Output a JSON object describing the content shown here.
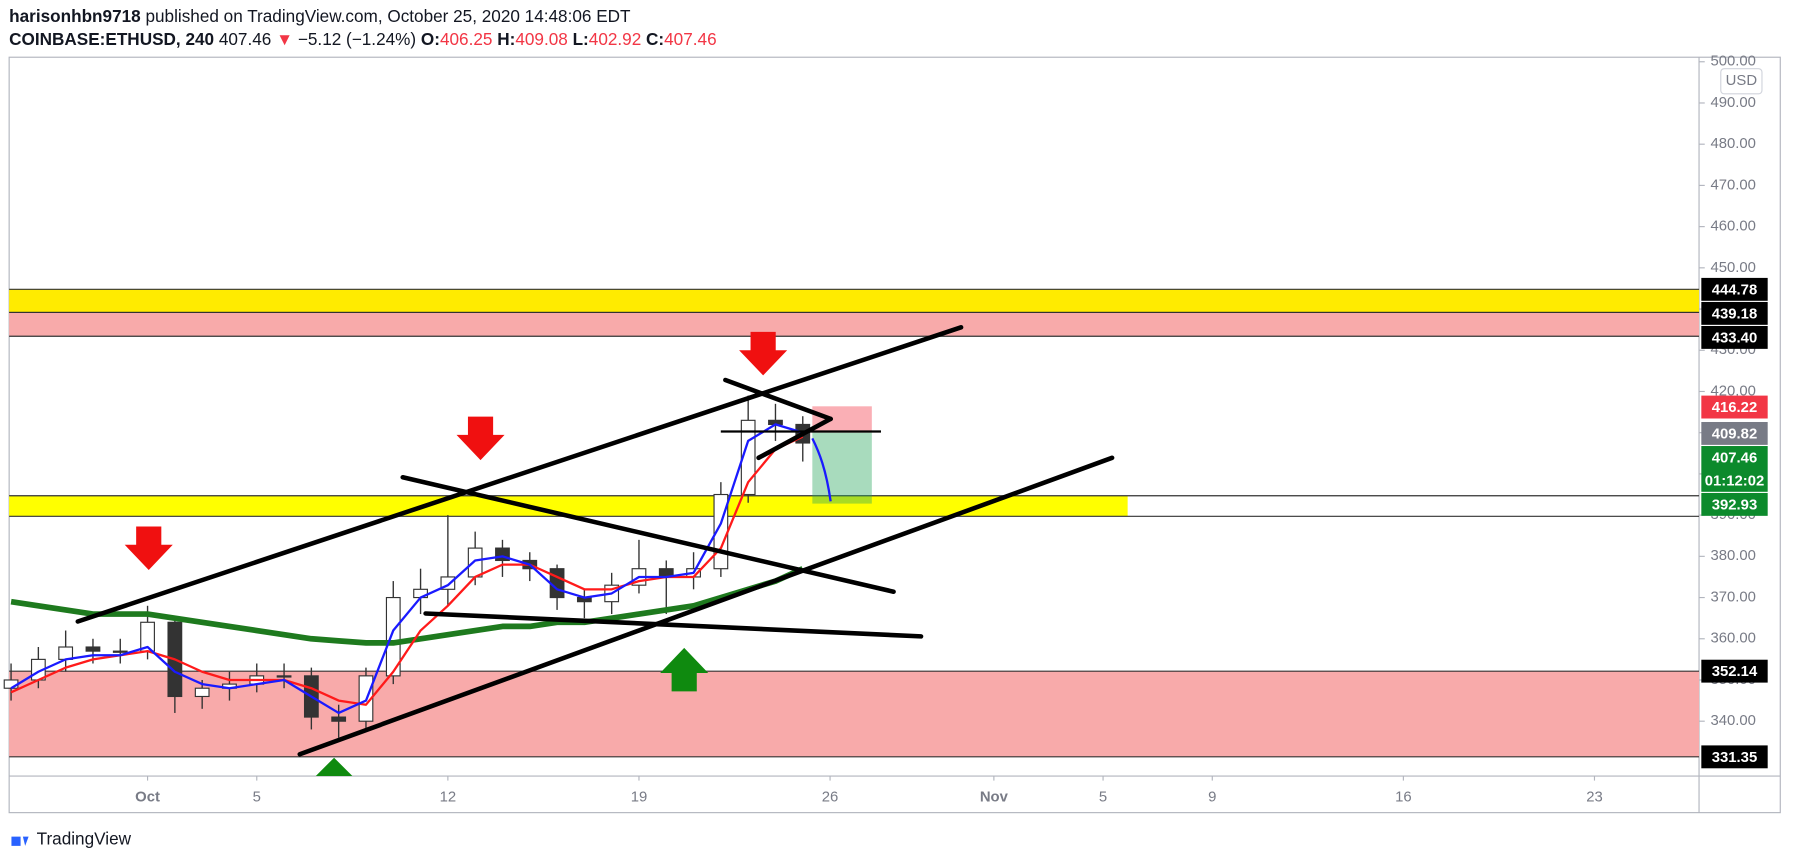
{
  "header": {
    "author": "harisonhbn9718",
    "published": "published on TradingView.com, October 25, 2020 14:48:06 EDT",
    "symbol": "COINBASE:ETHUSD, 240",
    "last": "407.46",
    "arrow": "▼",
    "change": "−5.12 (−1.24%)",
    "ohlc": [
      {
        "label": "O:",
        "value": "406.25"
      },
      {
        "label": "H:",
        "value": "409.08"
      },
      {
        "label": "L:",
        "value": "402.92"
      },
      {
        "label": "C:",
        "value": "407.46"
      }
    ]
  },
  "footer": "TradingView",
  "chart_data": {
    "type": "candlestick",
    "currency": "USD",
    "grid": false,
    "ylim": [
      326.7,
      501.1
    ],
    "yticks": [
      {
        "value": 340,
        "label": "340.00"
      },
      {
        "value": 350,
        "label": "350.00"
      },
      {
        "value": 360,
        "label": "360.00"
      },
      {
        "value": 370,
        "label": "370.00"
      },
      {
        "value": 380,
        "label": "380.00"
      },
      {
        "value": 390,
        "label": "390.00"
      },
      {
        "value": 400,
        "label": "400.00"
      },
      {
        "value": 410,
        "label": "410.00"
      },
      {
        "value": 420,
        "label": "420.00"
      },
      {
        "value": 430,
        "label": "430.00"
      },
      {
        "value": 440,
        "label": "440.00"
      },
      {
        "value": 450,
        "label": "450.00"
      },
      {
        "value": 460,
        "label": "460.00"
      },
      {
        "value": 470,
        "label": "470.00"
      },
      {
        "value": 480,
        "label": "480.00"
      },
      {
        "value": 490,
        "label": "490.00"
      },
      {
        "value": 500,
        "label": "500.00"
      }
    ],
    "xlim": [
      -4.07,
      57.83
    ],
    "xticks": [
      {
        "value": 1,
        "label": "Oct"
      },
      5,
      12,
      19,
      26,
      {
        "value": 32,
        "label": "Nov"
      },
      {
        "value": 36,
        "label": "5"
      },
      {
        "value": 40,
        "label": "9"
      },
      {
        "value": 47,
        "label": "16"
      },
      {
        "value": 54,
        "label": "23"
      }
    ],
    "up_color": "#ffffff",
    "down_color": "#333333",
    "wick_color": "#333333",
    "x": [
      -4,
      -3,
      -2,
      -1,
      0,
      1,
      2,
      3,
      4,
      5,
      6,
      7,
      8,
      9,
      10,
      11,
      12,
      13,
      14,
      15,
      16,
      17,
      18,
      19,
      20,
      21,
      22,
      23,
      24,
      25
    ],
    "open": [
      348,
      350,
      355,
      358,
      357,
      357,
      364,
      346,
      348,
      349,
      351,
      351,
      341,
      340,
      351,
      370,
      372,
      375,
      382,
      379,
      377,
      370,
      369,
      373,
      377,
      375,
      377,
      395,
      413,
      412
    ],
    "high": [
      354,
      358,
      362,
      360,
      360,
      368,
      365,
      350,
      352,
      354,
      354,
      353,
      344,
      353,
      374,
      377,
      390,
      386,
      384,
      381,
      378,
      372,
      376,
      384,
      379,
      381,
      398,
      419,
      417,
      414
    ],
    "low": [
      345,
      348,
      352,
      354,
      354,
      355,
      342,
      343,
      345,
      347,
      348,
      338,
      336,
      338,
      349,
      366,
      368,
      373,
      375,
      374,
      367,
      365,
      366,
      371,
      366,
      372,
      375,
      393,
      408,
      403
    ],
    "close": [
      350,
      355,
      358,
      357,
      357,
      364,
      346,
      348,
      349,
      351,
      351,
      341,
      340,
      351,
      370,
      372,
      375,
      382,
      379,
      377,
      370,
      369,
      373,
      377,
      375,
      377,
      395,
      413,
      412,
      407.5
    ],
    "lines": [
      {
        "color": "#1e7a1e",
        "width": 5,
        "values": [
          369,
          368,
          367,
          366,
          366,
          366,
          365,
          364,
          363,
          362,
          361,
          360,
          359.5,
          359,
          359,
          360,
          361,
          362,
          363,
          363,
          364,
          364,
          365,
          366,
          367,
          368,
          370,
          372,
          374,
          377
        ]
      },
      {
        "color": "#ff1a1a",
        "width": 2,
        "values": [
          347,
          350,
          353,
          355,
          356,
          357,
          355,
          352,
          350,
          350,
          350,
          348,
          345,
          344,
          352,
          362,
          368,
          375,
          378,
          378,
          375,
          372,
          372,
          374,
          375,
          375,
          382,
          398,
          406,
          409
        ]
      },
      {
        "color": "#1a1aff",
        "width": 2,
        "values": [
          348,
          352,
          355,
          356,
          356,
          358,
          352,
          349,
          348,
          349,
          350,
          346,
          342,
          345,
          362,
          370,
          373,
          379,
          380,
          378,
          372,
          370,
          371,
          375,
          375,
          376,
          388,
          408,
          412,
          410
        ]
      }
    ],
    "zones": [
      {
        "top": 444.78,
        "bottom": 439.18,
        "color": "#ffeb00"
      },
      {
        "top": 439.18,
        "bottom": 433.4,
        "color": "#f8aaaa"
      },
      {
        "top": 394.7,
        "bottom": 389.7,
        "color": "#ffff00",
        "x_end": 36.9
      },
      {
        "top": 352.14,
        "bottom": 331.35,
        "color": "#f8aaaa"
      }
    ],
    "price_labels": [
      {
        "value": 444.78,
        "bg": "#000000",
        "fg": "#ffffff"
      },
      {
        "value": 439.18,
        "bg": "#000000",
        "fg": "#ffffff"
      },
      {
        "value": {
          "value": 433.4,
          "label": "433.40"
        },
        "bg": "#000000",
        "fg": "#ffffff"
      },
      {
        "value": 416.22,
        "bg": "#f23645",
        "fg": "#ffffff"
      },
      {
        "value": 409.82,
        "bg": "#787b86",
        "fg": "#ffffff"
      },
      {
        "value": 407.46,
        "bg": "#0c8a2c",
        "fg": "#ffffff",
        "countdown": "01:12:02"
      },
      {
        "value": 392.93,
        "bg": "#0c8a2c",
        "fg": "#ffffff"
      },
      {
        "value": 352.14,
        "bg": "#000000",
        "fg": "#ffffff"
      },
      {
        "value": 331.35,
        "bg": "#000000",
        "fg": "#ffffff"
      }
    ]
  }
}
